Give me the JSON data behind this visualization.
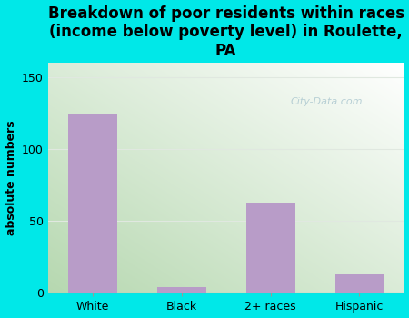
{
  "categories": [
    "White",
    "Black",
    "2+ races",
    "Hispanic"
  ],
  "values": [
    125,
    4,
    63,
    13
  ],
  "bar_color": "#b89cc8",
  "title": "Breakdown of poor residents within races\n(income below poverty level) in Roulette,\nPA",
  "ylabel": "absolute numbers",
  "ylim": [
    0,
    160
  ],
  "yticks": [
    0,
    50,
    100,
    150
  ],
  "bg_color": "#00e8e8",
  "plot_bg_top_right": "#ffffff",
  "plot_bg_bottom_left": "#b8d8b0",
  "watermark": "City-Data.com",
  "title_fontsize": 12,
  "ylabel_fontsize": 9,
  "tick_fontsize": 9,
  "grid_color": "#e0e8e0",
  "bar_width": 0.55
}
